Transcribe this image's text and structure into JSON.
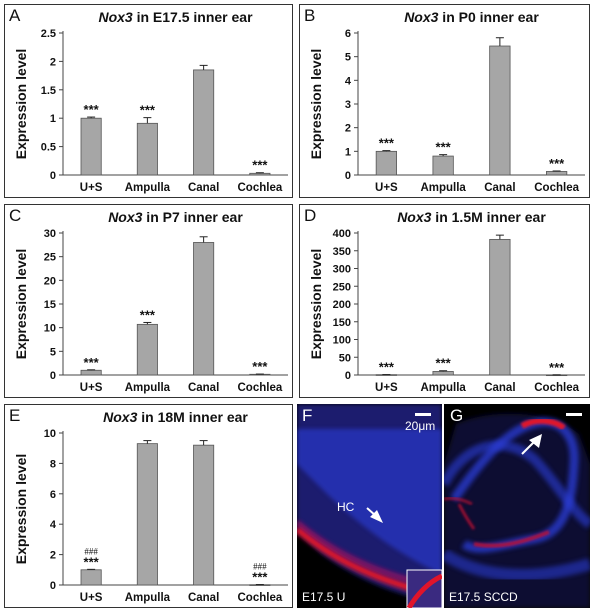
{
  "chart_data": [
    {
      "type": "bar",
      "panel": "A",
      "title_gene": "Nox3",
      "title_rest": " in E17.5 inner ear",
      "ylabel": "Expression level",
      "ylim": [
        0,
        2.5
      ],
      "yticks": [
        "0",
        "0.5",
        "1",
        "1.5",
        "2",
        "2.5"
      ],
      "categories": [
        "U+S",
        "Ampulla",
        "Canal",
        "Cochlea"
      ],
      "values": [
        1.0,
        0.91,
        1.85,
        0.03
      ],
      "errors": [
        0.02,
        0.1,
        0.08,
        0.01
      ],
      "annotations": [
        "***",
        "***",
        "",
        "***"
      ],
      "hash_annotations": [
        "",
        "",
        "",
        ""
      ]
    },
    {
      "type": "bar",
      "panel": "B",
      "title_gene": "Nox3",
      "title_rest": " in P0 inner ear",
      "ylabel": "Expression level",
      "ylim": [
        0,
        6
      ],
      "yticks": [
        "0",
        "1",
        "2",
        "3",
        "4",
        "5",
        "6"
      ],
      "categories": [
        "U+S",
        "Ampulla",
        "Canal",
        "Cochlea"
      ],
      "values": [
        1.0,
        0.8,
        5.45,
        0.15
      ],
      "errors": [
        0.03,
        0.06,
        0.35,
        0.02
      ],
      "annotations": [
        "***",
        "***",
        "",
        "***"
      ],
      "hash_annotations": [
        "",
        "",
        "",
        ""
      ]
    },
    {
      "type": "bar",
      "panel": "C",
      "title_gene": "Nox3",
      "title_rest": " in P7 inner ear",
      "ylabel": "Expression level",
      "ylim": [
        0,
        30
      ],
      "yticks": [
        "0",
        "5",
        "10",
        "15",
        "20",
        "25",
        "30"
      ],
      "categories": [
        "U+S",
        "Ampulla",
        "Canal",
        "Cochlea"
      ],
      "values": [
        1.0,
        10.7,
        28.0,
        0.15
      ],
      "errors": [
        0.1,
        0.4,
        1.2,
        0.05
      ],
      "annotations": [
        "***",
        "***",
        "",
        "***"
      ],
      "hash_annotations": [
        "",
        "",
        "",
        ""
      ]
    },
    {
      "type": "bar",
      "panel": "D",
      "title_gene": "Nox3",
      "title_rest": " in 1.5M inner ear",
      "ylabel": "Expression level",
      "ylim": [
        0,
        400
      ],
      "yticks": [
        "0",
        "50",
        "100",
        "150",
        "200",
        "250",
        "300",
        "350",
        "400"
      ],
      "categories": [
        "U+S",
        "Ampulla",
        "Canal",
        "Cochlea"
      ],
      "values": [
        1.0,
        10.0,
        382.0,
        0.5
      ],
      "errors": [
        0.2,
        2.0,
        12.0,
        0.1
      ],
      "annotations": [
        "***",
        "***",
        "",
        "***"
      ],
      "hash_annotations": [
        "",
        "",
        "",
        ""
      ]
    },
    {
      "type": "bar",
      "panel": "E",
      "title_gene": "Nox3",
      "title_rest": " in 18M inner ear",
      "ylabel": "Expression level",
      "ylim": [
        0,
        10
      ],
      "yticks": [
        "0",
        "2",
        "4",
        "6",
        "8",
        "10"
      ],
      "categories": [
        "U+S",
        "Ampulla",
        "Canal",
        "Cochlea"
      ],
      "values": [
        1.0,
        9.3,
        9.2,
        0.02
      ],
      "errors": [
        0.03,
        0.2,
        0.3,
        0.01
      ],
      "annotations": [
        "***",
        "",
        "",
        "***"
      ],
      "hash_annotations": [
        "###",
        "",
        "",
        "###"
      ]
    }
  ],
  "micrographs": {
    "F": {
      "letter": "F",
      "caption": "E17.5 U",
      "scale_label": "20μm",
      "arrow_label": "HC"
    },
    "G": {
      "letter": "G",
      "caption": "E17.5 SCCD"
    }
  },
  "colors": {
    "bar_fill": "#a6a6a6",
    "bar_stroke": "#555555",
    "dapi_blue": "#2a3cd8",
    "membrane_red": "#e0142a"
  }
}
